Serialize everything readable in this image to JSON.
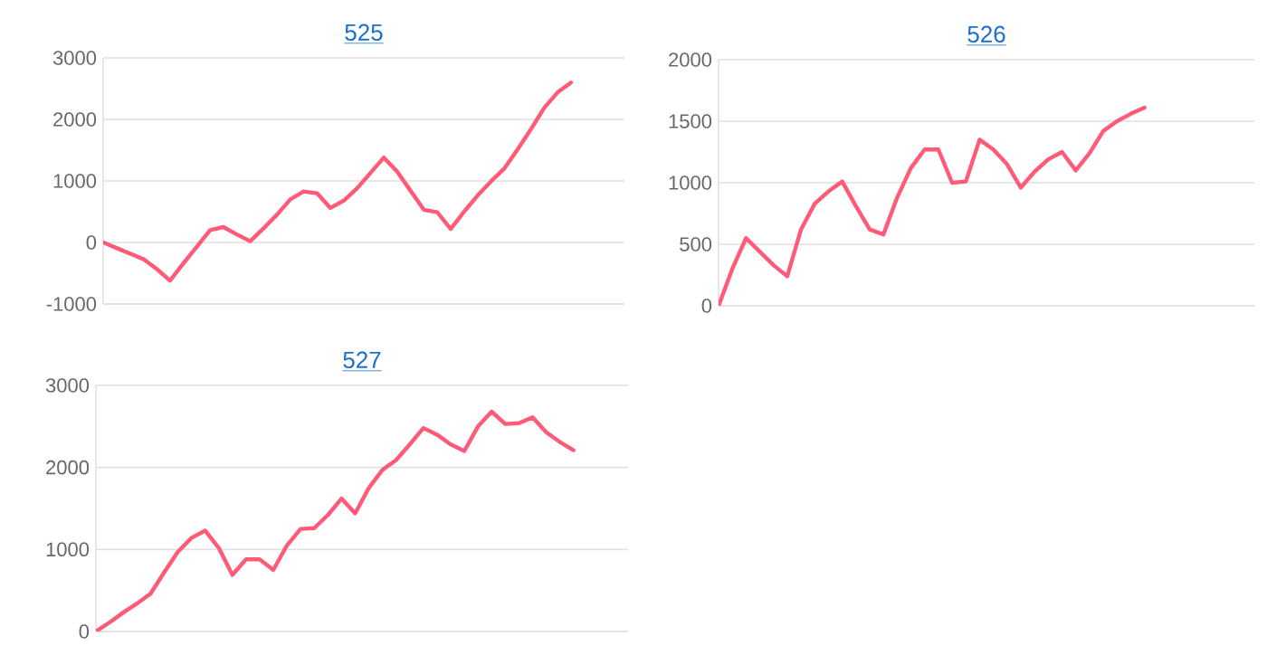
{
  "chart_data": [
    {
      "type": "line",
      "title": "525",
      "categories": [
        null,
        null,
        null,
        null,
        null,
        null,
        null,
        null,
        null,
        null,
        null,
        null,
        null,
        null,
        null,
        null,
        null,
        null,
        null,
        null,
        null,
        null,
        null,
        null,
        null,
        null,
        null,
        null,
        null,
        null,
        null,
        null,
        null,
        null,
        null,
        null,
        null,
        null,
        null,
        null
      ],
      "series": [
        {
          "color": "#ff5a78",
          "values": [
            0,
            -90,
            -180,
            -270,
            -430,
            -620,
            -340,
            -70,
            200,
            250,
            130,
            20,
            230,
            450,
            700,
            830,
            800,
            560,
            680,
            880,
            1130,
            1380,
            1150,
            840,
            530,
            490,
            220,
            500,
            760,
            990,
            1200,
            1510,
            1840,
            2190,
            2440,
            2600,
            null,
            null,
            null,
            null
          ]
        }
      ],
      "ylim": [
        -1000,
        3000
      ],
      "yticks": [
        -1000,
        0,
        1000,
        2000,
        3000
      ],
      "grid": "y",
      "tick_labels": "y"
    },
    {
      "type": "line",
      "title": "526",
      "categories": [
        null,
        null,
        null,
        null,
        null,
        null,
        null,
        null,
        null,
        null,
        null,
        null,
        null,
        null,
        null,
        null,
        null,
        null,
        null,
        null,
        null,
        null,
        null,
        null,
        null,
        null,
        null,
        null,
        null,
        null,
        null,
        null,
        null,
        null,
        null,
        null,
        null,
        null,
        null,
        null
      ],
      "series": [
        {
          "color": "#ff5a78",
          "values": [
            0,
            300,
            550,
            440,
            330,
            240,
            620,
            830,
            930,
            1010,
            810,
            620,
            580,
            880,
            1120,
            1270,
            1270,
            1000,
            1010,
            1350,
            1270,
            1150,
            960,
            1090,
            1190,
            1250,
            1100,
            1240,
            1420,
            1500,
            1560,
            1610,
            null,
            null,
            null,
            null,
            null,
            null,
            null,
            null
          ]
        }
      ],
      "ylim": [
        0,
        2000
      ],
      "yticks": [
        0,
        500,
        1000,
        1500,
        2000
      ],
      "grid": "y",
      "tick_labels": "y"
    },
    {
      "type": "line",
      "title": "527",
      "categories": [
        null,
        null,
        null,
        null,
        null,
        null,
        null,
        null,
        null,
        null,
        null,
        null,
        null,
        null,
        null,
        null,
        null,
        null,
        null,
        null,
        null,
        null,
        null,
        null,
        null,
        null,
        null,
        null,
        null,
        null,
        null,
        null,
        null,
        null,
        null,
        null,
        null,
        null,
        null,
        null
      ],
      "series": [
        {
          "color": "#ff5a78",
          "values": [
            0,
            110,
            230,
            340,
            460,
            720,
            970,
            1140,
            1230,
            1020,
            690,
            880,
            880,
            750,
            1050,
            1250,
            1260,
            1420,
            1620,
            1440,
            1750,
            1970,
            2090,
            2280,
            2480,
            2400,
            2280,
            2200,
            2500,
            2680,
            2530,
            2540,
            2610,
            2430,
            2310,
            2210,
            null,
            null,
            null,
            null
          ]
        }
      ],
      "ylim": [
        0,
        3000
      ],
      "yticks": [
        0,
        1000,
        2000,
        3000
      ],
      "grid": "y",
      "tick_labels": "y"
    }
  ]
}
